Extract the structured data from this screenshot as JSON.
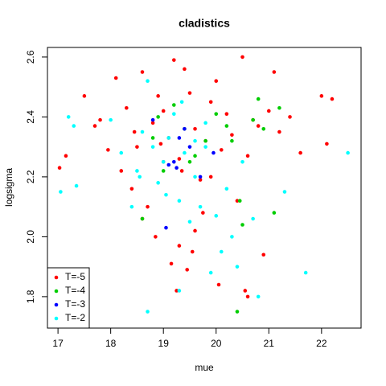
{
  "chart_data": {
    "type": "scatter",
    "title": "cladistics",
    "x_label": "mue",
    "y_label": "logsigma",
    "xlim": [
      16.8,
      22.75
    ],
    "ylim": [
      1.695,
      2.632
    ],
    "xticks": [
      17,
      18,
      19,
      20,
      21,
      22
    ],
    "yticks": [
      1.8,
      {
        "value": 2,
        "label": "2.0"
      },
      2.2,
      2.4,
      2.6
    ],
    "legend": "bottomleft",
    "series": [
      {
        "name": "T=-5",
        "color": "#ff0000",
        "x": [
          17.03,
          17.15,
          17.5,
          17.7,
          17.8,
          17.95,
          18.1,
          18.2,
          18.3,
          18.4,
          18.5,
          18.6,
          18.7,
          18.8,
          18.9,
          19.0,
          19.1,
          19.2,
          19.3,
          19.4,
          19.5,
          19.6,
          19.7,
          19.8,
          19.9,
          20.0,
          20.1,
          20.2,
          20.3,
          20.4,
          20.5,
          20.6,
          20.7,
          20.8,
          21.0,
          21.1,
          21.2,
          21.4,
          21.6,
          22.0,
          22.1,
          22.2,
          18.85,
          19.15,
          19.45,
          19.75,
          20.05,
          19.25,
          19.55,
          18.6,
          19.9,
          20.55,
          20.6,
          19.3,
          19.0,
          18.95,
          19.6,
          20.9,
          18.45,
          19.35
        ],
        "y": [
          2.23,
          2.27,
          2.47,
          2.37,
          2.39,
          2.29,
          2.53,
          2.22,
          2.43,
          2.16,
          2.3,
          2.55,
          2.1,
          2.38,
          2.47,
          2.42,
          2.33,
          2.59,
          2.26,
          2.56,
          2.48,
          2.36,
          2.19,
          2.32,
          2.45,
          2.52,
          2.29,
          2.41,
          2.34,
          2.12,
          2.6,
          2.27,
          2.39,
          2.37,
          2.42,
          2.55,
          2.35,
          2.4,
          2.28,
          2.47,
          2.31,
          2.46,
          2.0,
          1.91,
          1.89,
          2.08,
          1.84,
          1.82,
          1.95,
          2.06,
          2.2,
          1.82,
          1.8,
          1.97,
          2.25,
          2.31,
          2.02,
          1.94,
          2.35,
          2.22
        ]
      },
      {
        "name": "T=-4",
        "color": "#00cd00",
        "x": [
          18.6,
          18.9,
          19.0,
          19.2,
          19.4,
          19.6,
          19.8,
          20.0,
          20.3,
          20.5,
          20.7,
          20.8,
          21.1,
          21.2,
          20.4,
          18.8,
          19.5,
          20.2,
          20.9,
          20.45
        ],
        "y": [
          2.06,
          2.4,
          2.22,
          2.44,
          2.36,
          2.27,
          2.32,
          2.41,
          2.32,
          2.04,
          2.39,
          2.46,
          2.08,
          2.43,
          1.75,
          2.33,
          2.25,
          2.37,
          2.36,
          2.12
        ]
      },
      {
        "name": "T=-3",
        "color": "#0000ff",
        "x": [
          18.8,
          19.1,
          19.2,
          19.3,
          19.5,
          19.7,
          19.05,
          19.4,
          19.95,
          19.25
        ],
        "y": [
          2.39,
          2.24,
          2.25,
          2.33,
          2.3,
          2.2,
          2.03,
          2.36,
          2.28,
          2.23
        ]
      },
      {
        "name": "T=-2",
        "color": "#00ffff",
        "x": [
          17.05,
          17.2,
          17.3,
          17.35,
          18.0,
          18.2,
          18.4,
          18.5,
          18.6,
          18.7,
          18.8,
          18.9,
          19.0,
          19.1,
          19.2,
          19.3,
          19.4,
          19.5,
          19.6,
          19.7,
          19.8,
          19.9,
          20.0,
          20.1,
          20.2,
          20.3,
          20.5,
          20.7,
          20.8,
          21.3,
          21.7,
          22.5,
          18.7,
          19.3,
          19.35,
          19.8,
          20.4,
          18.55,
          19.05,
          19.6
        ],
        "y": [
          2.15,
          2.4,
          2.37,
          2.17,
          2.39,
          2.28,
          2.1,
          2.22,
          2.35,
          1.75,
          2.3,
          2.18,
          2.25,
          2.33,
          2.41,
          2.12,
          2.28,
          2.05,
          2.2,
          2.1,
          2.3,
          1.88,
          2.07,
          1.95,
          2.16,
          2.0,
          2.25,
          2.06,
          1.8,
          2.15,
          1.88,
          2.28,
          2.52,
          1.82,
          2.45,
          2.38,
          1.9,
          2.2,
          2.14,
          2.32
        ]
      }
    ]
  }
}
